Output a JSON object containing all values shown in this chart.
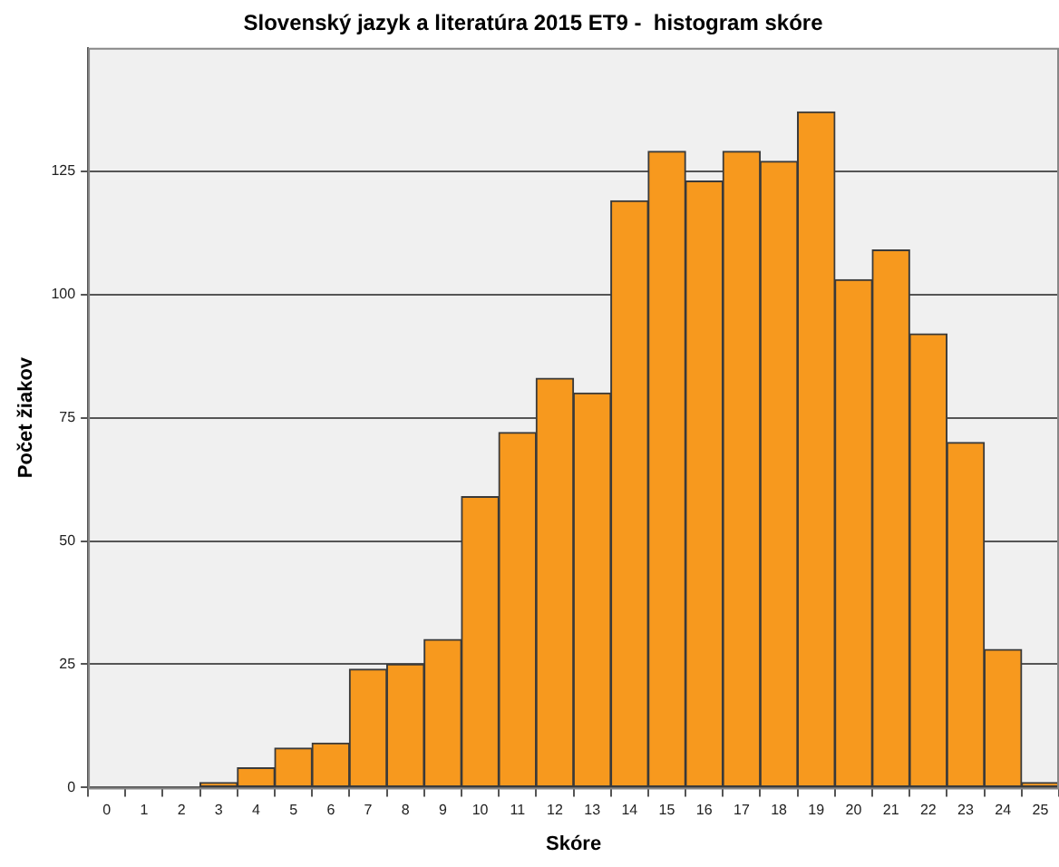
{
  "chart_data": {
    "type": "histogram",
    "title": "Slovenský jazyk a literatúra 2015 ET9 -  histogram skóre",
    "xlabel": "Skóre",
    "ylabel": "Počet žiakov",
    "bins": [
      2.5,
      3.5,
      4.5,
      5.5,
      6.5,
      7.5,
      8.5,
      9.5,
      10.5,
      11.5,
      12.5,
      13.5,
      14.5,
      15.5,
      16.5,
      17.5,
      18.5,
      19.5,
      20.5,
      21.5,
      22.5,
      23.5,
      24.5,
      25.5
    ],
    "values": [
      1,
      4,
      8,
      9,
      24,
      25,
      30,
      59,
      72,
      83,
      80,
      119,
      129,
      123,
      129,
      127,
      137,
      103,
      109,
      92,
      70,
      28,
      1
    ],
    "color": "#f7991e",
    "xlim": [
      -0.5,
      25.5
    ],
    "xticks": [
      0,
      1,
      2,
      3,
      4,
      5,
      6,
      7,
      8,
      9,
      10,
      11,
      12,
      13,
      14,
      15,
      16,
      17,
      18,
      19,
      20,
      21,
      22,
      23,
      24,
      25
    ],
    "ylim": [
      0,
      150
    ],
    "yticks": [
      0,
      25,
      50,
      75,
      100,
      125
    ],
    "grid": "y",
    "legend": false
  }
}
